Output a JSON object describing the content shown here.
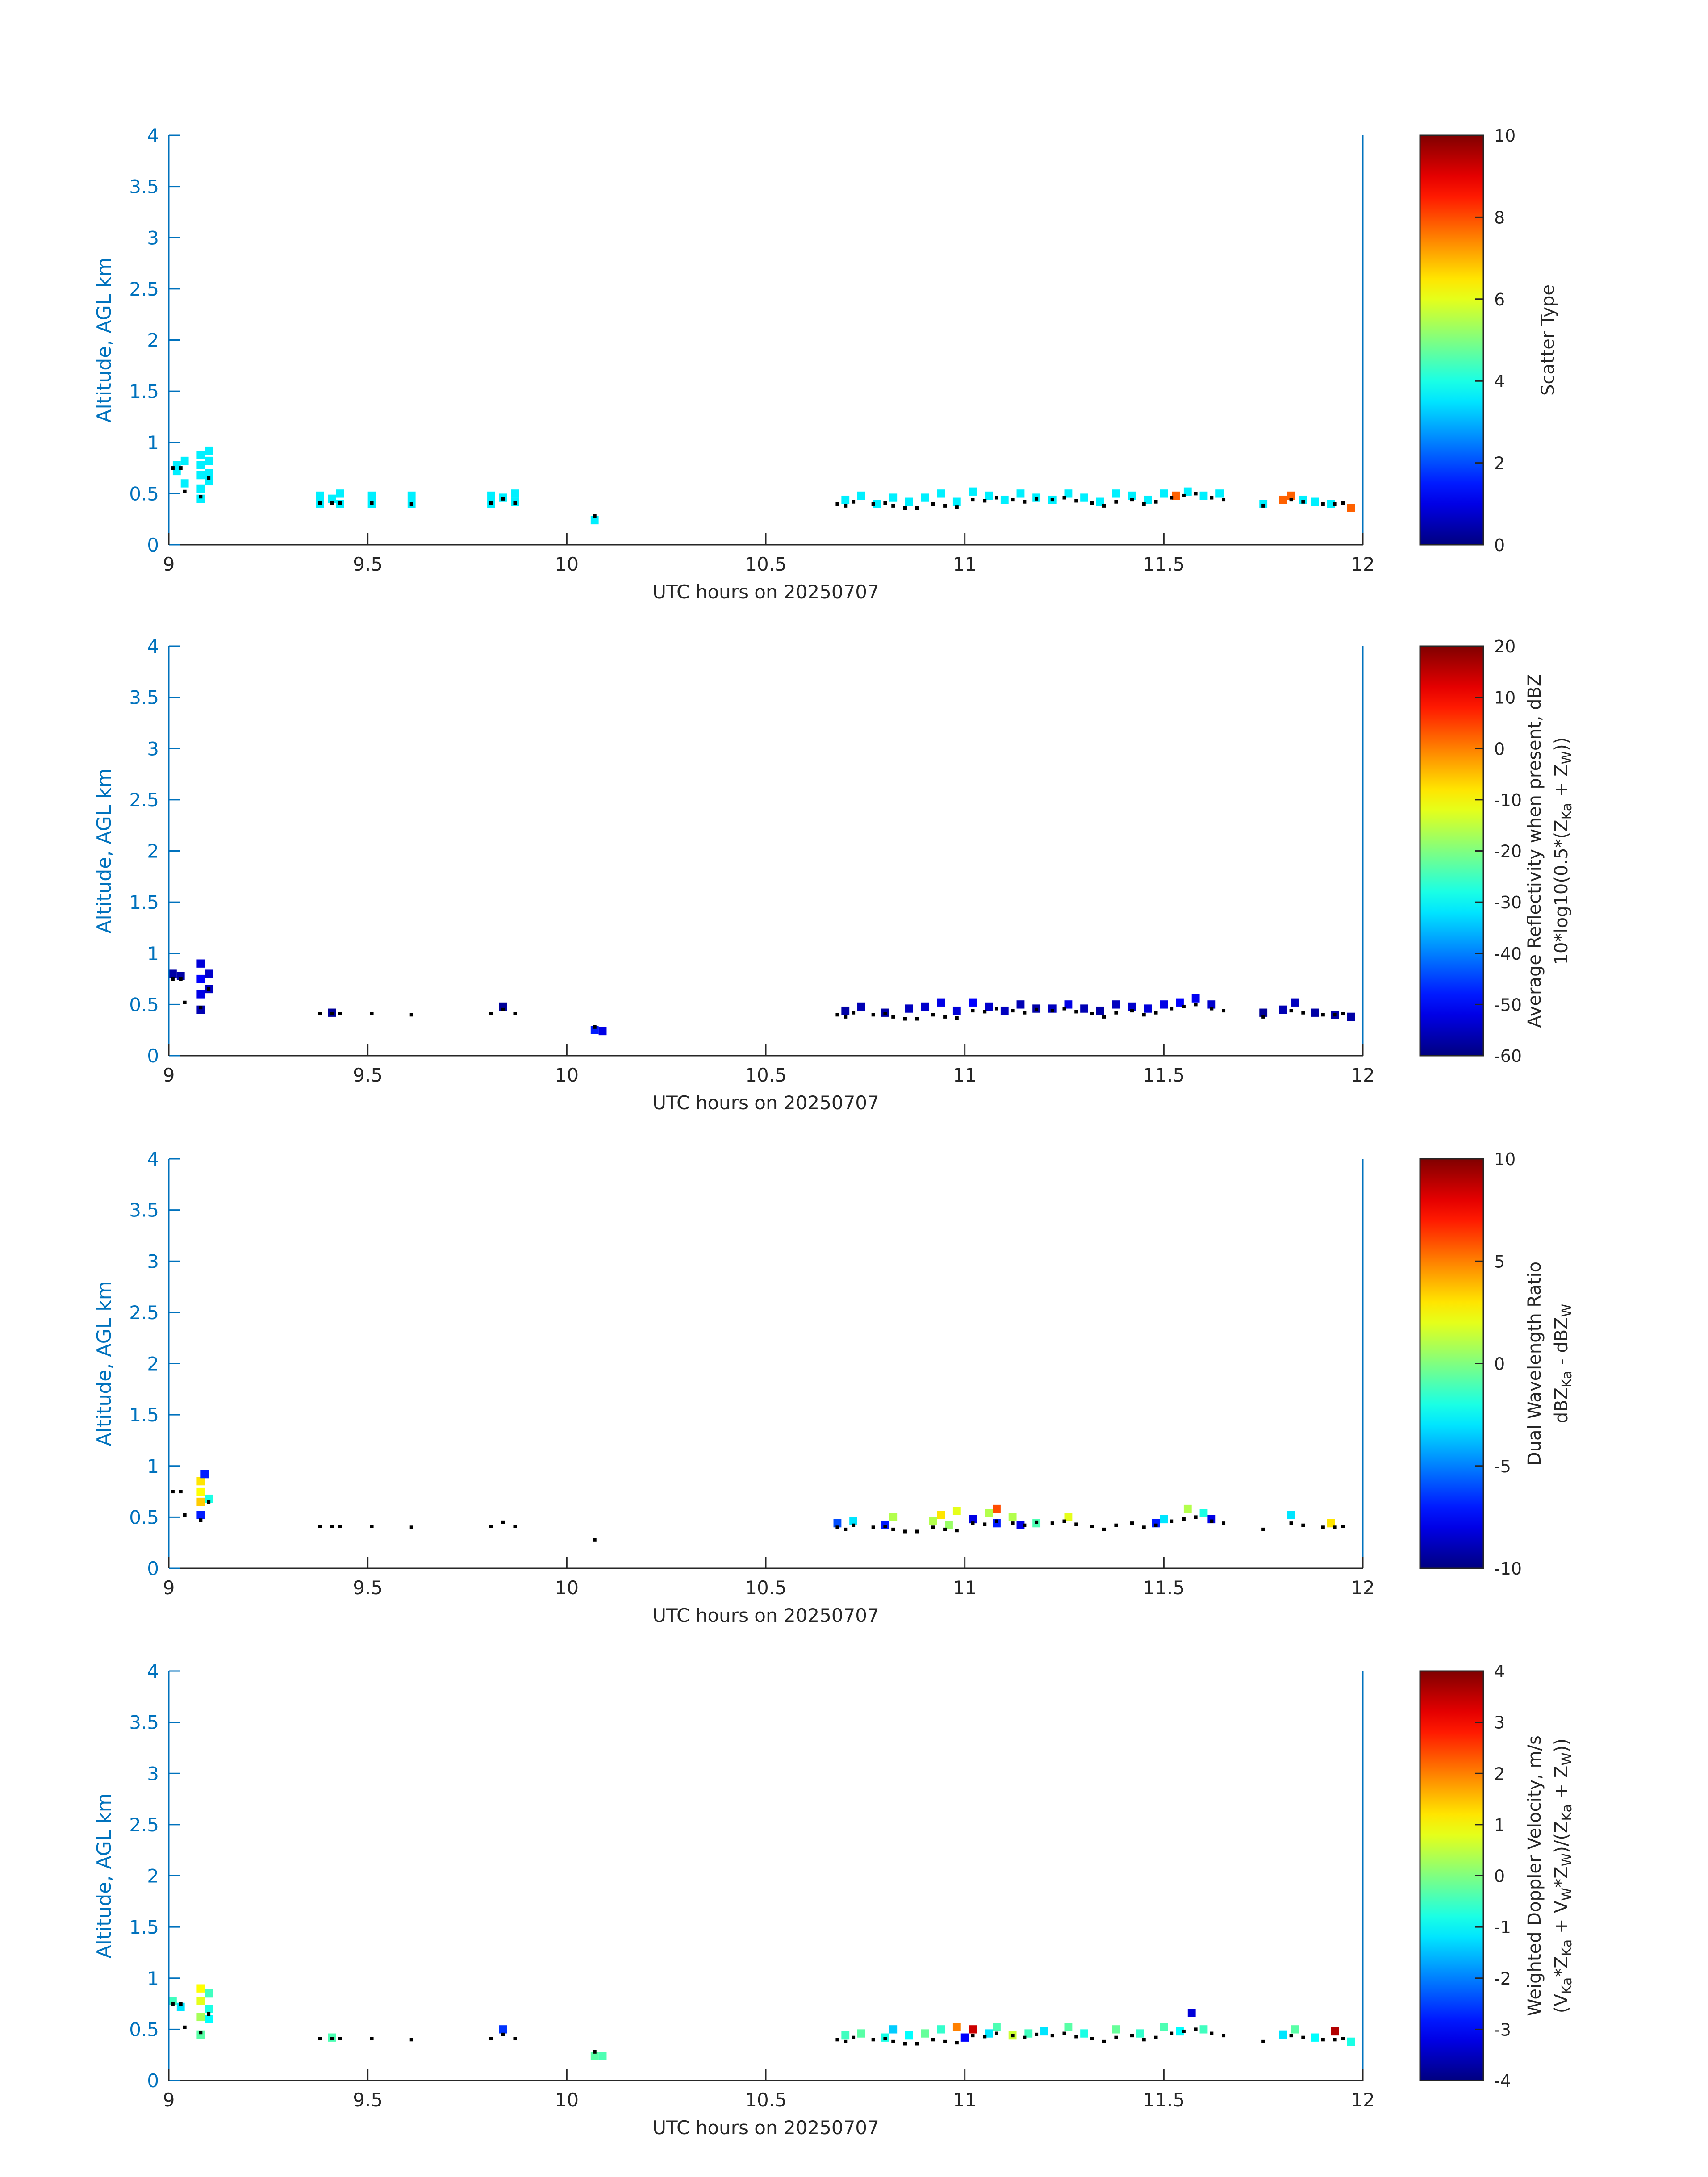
{
  "chart_data": [
    {
      "type": "heatmap",
      "xlabel": "UTC hours on 20250707",
      "ylabel": "Altitude, AGL km",
      "xlim": [
        9,
        12
      ],
      "ylim": [
        0,
        4
      ],
      "xticks": [
        "9",
        "9.5",
        "10",
        "10.5",
        "11",
        "11.5",
        "12"
      ],
      "yticks": [
        "0",
        "0.5",
        "1",
        "1.5",
        "2",
        "2.5",
        "3",
        "3.5",
        "4"
      ],
      "colorbar": {
        "label_lines": [
          "Scatter Type"
        ],
        "range": [
          0,
          10
        ],
        "ticks": [
          "0",
          "2",
          "4",
          "6",
          "8",
          "10"
        ],
        "colormap": "jet"
      },
      "cells": [
        [
          9.02,
          0.78,
          3.6
        ],
        [
          9.02,
          0.72,
          3.6
        ],
        [
          9.04,
          0.82,
          3.6
        ],
        [
          9.04,
          0.6,
          3.6
        ],
        [
          9.08,
          0.88,
          3.6
        ],
        [
          9.08,
          0.78,
          3.6
        ],
        [
          9.08,
          0.68,
          3.6
        ],
        [
          9.08,
          0.55,
          3.6
        ],
        [
          9.08,
          0.45,
          3.6
        ],
        [
          9.1,
          0.92,
          3.6
        ],
        [
          9.1,
          0.82,
          3.6
        ],
        [
          9.1,
          0.7,
          3.6
        ],
        [
          9.1,
          0.62,
          3.6
        ],
        [
          9.38,
          0.48,
          3.6
        ],
        [
          9.38,
          0.4,
          3.6
        ],
        [
          9.41,
          0.45,
          3.6
        ],
        [
          9.43,
          0.5,
          3.6
        ],
        [
          9.43,
          0.4,
          3.6
        ],
        [
          9.51,
          0.48,
          3.6
        ],
        [
          9.51,
          0.4,
          3.6
        ],
        [
          9.61,
          0.48,
          3.6
        ],
        [
          9.61,
          0.4,
          3.6
        ],
        [
          9.81,
          0.48,
          3.6
        ],
        [
          9.81,
          0.4,
          3.6
        ],
        [
          9.84,
          0.46,
          3.6
        ],
        [
          9.87,
          0.5,
          3.6
        ],
        [
          9.87,
          0.42,
          3.6
        ],
        [
          10.07,
          0.24,
          3.6
        ],
        [
          10.7,
          0.44,
          3.6
        ],
        [
          10.74,
          0.48,
          3.6
        ],
        [
          10.78,
          0.4,
          3.6
        ],
        [
          10.82,
          0.46,
          3.6
        ],
        [
          10.86,
          0.42,
          3.6
        ],
        [
          10.9,
          0.46,
          3.6
        ],
        [
          10.94,
          0.5,
          3.6
        ],
        [
          10.98,
          0.42,
          3.6
        ],
        [
          11.02,
          0.52,
          3.6
        ],
        [
          11.06,
          0.48,
          3.6
        ],
        [
          11.1,
          0.44,
          3.6
        ],
        [
          11.14,
          0.5,
          3.6
        ],
        [
          11.18,
          0.46,
          3.6
        ],
        [
          11.22,
          0.44,
          3.6
        ],
        [
          11.26,
          0.5,
          3.6
        ],
        [
          11.3,
          0.46,
          3.6
        ],
        [
          11.34,
          0.42,
          3.6
        ],
        [
          11.38,
          0.5,
          3.6
        ],
        [
          11.42,
          0.48,
          3.6
        ],
        [
          11.46,
          0.44,
          3.6
        ],
        [
          11.5,
          0.5,
          3.6
        ],
        [
          11.53,
          0.48,
          7.8
        ],
        [
          11.56,
          0.52,
          3.6
        ],
        [
          11.6,
          0.48,
          3.6
        ],
        [
          11.64,
          0.5,
          3.6
        ],
        [
          11.75,
          0.4,
          3.6
        ],
        [
          11.8,
          0.44,
          7.8
        ],
        [
          11.82,
          0.48,
          7.8
        ],
        [
          11.85,
          0.44,
          3.6
        ],
        [
          11.88,
          0.42,
          3.6
        ],
        [
          11.92,
          0.4,
          3.6
        ],
        [
          11.97,
          0.36,
          7.8
        ]
      ]
    },
    {
      "type": "heatmap",
      "xlabel": "UTC hours on 20250707",
      "ylabel": "Altitude, AGL km",
      "xlim": [
        9,
        12
      ],
      "ylim": [
        0,
        4
      ],
      "xticks": [
        "9",
        "9.5",
        "10",
        "10.5",
        "11",
        "11.5",
        "12"
      ],
      "yticks": [
        "0",
        "0.5",
        "1",
        "1.5",
        "2",
        "2.5",
        "3",
        "3.5",
        "4"
      ],
      "colorbar": {
        "label_lines": [
          "Average Reflectivity when present, dBZ",
          "10*log10(0.5*(Z",
          "Ka",
          " + Z",
          "W",
          "))"
        ],
        "range": [
          -60,
          20
        ],
        "ticks": [
          "-60",
          "-50",
          "-40",
          "-30",
          "-20",
          "-10",
          "0",
          "10",
          "20"
        ],
        "colormap": "jet"
      },
      "cells": [
        [
          9.01,
          0.8,
          -57
        ],
        [
          9.03,
          0.78,
          -57
        ],
        [
          9.08,
          0.9,
          -53
        ],
        [
          9.08,
          0.75,
          -50
        ],
        [
          9.08,
          0.6,
          -52
        ],
        [
          9.08,
          0.45,
          -56
        ],
        [
          9.1,
          0.8,
          -54
        ],
        [
          9.1,
          0.65,
          -55
        ],
        [
          9.41,
          0.42,
          -58
        ],
        [
          9.84,
          0.48,
          -58
        ],
        [
          10.07,
          0.25,
          -48
        ],
        [
          10.09,
          0.24,
          -52
        ],
        [
          10.7,
          0.44,
          -57
        ],
        [
          10.74,
          0.48,
          -56
        ],
        [
          10.8,
          0.42,
          -57
        ],
        [
          10.86,
          0.46,
          -55
        ],
        [
          10.9,
          0.48,
          -54
        ],
        [
          10.94,
          0.52,
          -52
        ],
        [
          10.98,
          0.44,
          -53
        ],
        [
          11.02,
          0.52,
          -50
        ],
        [
          11.06,
          0.48,
          -54
        ],
        [
          11.1,
          0.44,
          -55
        ],
        [
          11.14,
          0.5,
          -56
        ],
        [
          11.18,
          0.46,
          -57
        ],
        [
          11.22,
          0.46,
          -55
        ],
        [
          11.26,
          0.5,
          -52
        ],
        [
          11.3,
          0.46,
          -56
        ],
        [
          11.34,
          0.44,
          -57
        ],
        [
          11.38,
          0.5,
          -55
        ],
        [
          11.42,
          0.48,
          -54
        ],
        [
          11.46,
          0.46,
          -53
        ],
        [
          11.5,
          0.5,
          -52
        ],
        [
          11.54,
          0.52,
          -50
        ],
        [
          11.58,
          0.56,
          -51
        ],
        [
          11.62,
          0.5,
          -54
        ],
        [
          11.75,
          0.42,
          -58
        ],
        [
          11.8,
          0.45,
          -56
        ],
        [
          11.83,
          0.52,
          -55
        ],
        [
          11.88,
          0.42,
          -57
        ],
        [
          11.93,
          0.4,
          -57
        ],
        [
          11.97,
          0.38,
          -57
        ]
      ]
    },
    {
      "type": "heatmap",
      "xlabel": "UTC hours on 20250707",
      "ylabel": "Altitude, AGL km",
      "xlim": [
        9,
        12
      ],
      "ylim": [
        0,
        4
      ],
      "xticks": [
        "9",
        "9.5",
        "10",
        "10.5",
        "11",
        "11.5",
        "12"
      ],
      "yticks": [
        "0",
        "0.5",
        "1",
        "1.5",
        "2",
        "2.5",
        "3",
        "3.5",
        "4"
      ],
      "colorbar": {
        "label_lines": [
          "Dual Wavelength Ratio",
          "dBZ",
          "Ka",
          " - dBZ",
          "W"
        ],
        "range": [
          -10,
          10
        ],
        "ticks": [
          "-10",
          "-5",
          "0",
          "5",
          "10"
        ],
        "colormap": "jet"
      },
      "cells": [
        [
          9.08,
          0.85,
          3.0
        ],
        [
          9.08,
          0.75,
          2.5
        ],
        [
          9.08,
          0.65,
          3.5
        ],
        [
          9.08,
          0.52,
          -7
        ],
        [
          9.09,
          0.92,
          -7
        ],
        [
          9.1,
          0.68,
          -2
        ],
        [
          10.68,
          0.44,
          -6
        ],
        [
          10.72,
          0.46,
          -3
        ],
        [
          10.8,
          0.42,
          -7
        ],
        [
          10.82,
          0.5,
          1
        ],
        [
          10.92,
          0.46,
          1
        ],
        [
          10.94,
          0.52,
          3
        ],
        [
          10.96,
          0.42,
          0.5
        ],
        [
          10.98,
          0.56,
          2
        ],
        [
          11.02,
          0.48,
          -8
        ],
        [
          11.06,
          0.54,
          1
        ],
        [
          11.08,
          0.58,
          6
        ],
        [
          11.08,
          0.44,
          -7
        ],
        [
          11.12,
          0.5,
          1
        ],
        [
          11.14,
          0.42,
          -8
        ],
        [
          11.18,
          0.44,
          -1
        ],
        [
          11.26,
          0.5,
          2
        ],
        [
          11.48,
          0.44,
          -7
        ],
        [
          11.5,
          0.48,
          -3
        ],
        [
          11.56,
          0.58,
          1
        ],
        [
          11.6,
          0.54,
          -2
        ],
        [
          11.62,
          0.48,
          -8
        ],
        [
          11.82,
          0.52,
          -3
        ],
        [
          11.92,
          0.44,
          3
        ]
      ]
    },
    {
      "type": "heatmap",
      "xlabel": "UTC hours on 20250707",
      "ylabel": "Altitude, AGL km",
      "xlim": [
        9,
        12
      ],
      "ylim": [
        0,
        4
      ],
      "xticks": [
        "9",
        "9.5",
        "10",
        "10.5",
        "11",
        "11.5",
        "12"
      ],
      "yticks": [
        "0",
        "0.5",
        "1",
        "1.5",
        "2",
        "2.5",
        "3",
        "3.5",
        "4"
      ],
      "colorbar": {
        "label_lines": [
          "Weighted Doppler Velocity, m/s",
          "(V",
          "Ka",
          "*Z",
          "Ka",
          " + V",
          "W",
          "*Z",
          "W",
          ")/(Z",
          "Ka",
          " + Z",
          "W",
          "))"
        ],
        "range": [
          -4,
          4
        ],
        "ticks": [
          "-4",
          "-3",
          "-2",
          "-1",
          "0",
          "1",
          "2",
          "3",
          "4"
        ],
        "colormap": "jet"
      },
      "cells": [
        [
          9.01,
          0.78,
          -0.5
        ],
        [
          9.03,
          0.72,
          -1.2
        ],
        [
          9.08,
          0.9,
          1.0
        ],
        [
          9.08,
          0.78,
          0.8
        ],
        [
          9.08,
          0.62,
          0.3
        ],
        [
          9.08,
          0.45,
          -0.3
        ],
        [
          9.1,
          0.85,
          -0.5
        ],
        [
          9.1,
          0.7,
          -0.8
        ],
        [
          9.1,
          0.6,
          -1.0
        ],
        [
          9.41,
          0.42,
          -0.4
        ],
        [
          9.84,
          0.5,
          -2.6
        ],
        [
          10.07,
          0.24,
          -0.3
        ],
        [
          10.09,
          0.24,
          -0.4
        ],
        [
          10.7,
          0.44,
          -0.5
        ],
        [
          10.74,
          0.46,
          -0.3
        ],
        [
          10.8,
          0.42,
          -0.8
        ],
        [
          10.82,
          0.5,
          -1.4
        ],
        [
          10.86,
          0.44,
          -1.0
        ],
        [
          10.9,
          0.46,
          -0.2
        ],
        [
          10.94,
          0.5,
          -0.6
        ],
        [
          10.98,
          0.52,
          2.0
        ],
        [
          11.0,
          0.42,
          -3.0
        ],
        [
          11.02,
          0.5,
          3.4
        ],
        [
          11.06,
          0.46,
          -1.2
        ],
        [
          11.08,
          0.52,
          -0.4
        ],
        [
          11.12,
          0.44,
          0.6
        ],
        [
          11.16,
          0.46,
          -0.5
        ],
        [
          11.2,
          0.48,
          -1.2
        ],
        [
          11.26,
          0.52,
          -0.3
        ],
        [
          11.3,
          0.46,
          -0.8
        ],
        [
          11.38,
          0.5,
          -0.2
        ],
        [
          11.44,
          0.46,
          -0.6
        ],
        [
          11.5,
          0.52,
          -0.4
        ],
        [
          11.54,
          0.48,
          -1.0
        ],
        [
          11.57,
          0.66,
          -3.3
        ],
        [
          11.6,
          0.5,
          -0.5
        ],
        [
          11.8,
          0.45,
          -1.2
        ],
        [
          11.83,
          0.5,
          -0.3
        ],
        [
          11.88,
          0.42,
          -1.0
        ],
        [
          11.93,
          0.48,
          3.6
        ],
        [
          11.97,
          0.38,
          -0.8
        ]
      ]
    }
  ],
  "cloud_base_points": [
    [
      9.01,
      0.75
    ],
    [
      9.03,
      0.75
    ],
    [
      9.04,
      0.52
    ],
    [
      9.08,
      0.47
    ],
    [
      9.1,
      0.65
    ],
    [
      9.38,
      0.41
    ],
    [
      9.41,
      0.41
    ],
    [
      9.43,
      0.41
    ],
    [
      9.51,
      0.41
    ],
    [
      9.61,
      0.4
    ],
    [
      9.81,
      0.41
    ],
    [
      9.84,
      0.45
    ],
    [
      9.87,
      0.41
    ],
    [
      10.07,
      0.28
    ],
    [
      10.68,
      0.4
    ],
    [
      10.7,
      0.38
    ],
    [
      10.72,
      0.42
    ],
    [
      10.77,
      0.4
    ],
    [
      10.8,
      0.41
    ],
    [
      10.82,
      0.38
    ],
    [
      10.85,
      0.36
    ],
    [
      10.88,
      0.36
    ],
    [
      10.92,
      0.4
    ],
    [
      10.95,
      0.38
    ],
    [
      10.98,
      0.37
    ],
    [
      11.02,
      0.44
    ],
    [
      11.05,
      0.43
    ],
    [
      11.08,
      0.46
    ],
    [
      11.12,
      0.44
    ],
    [
      11.15,
      0.42
    ],
    [
      11.18,
      0.45
    ],
    [
      11.22,
      0.44
    ],
    [
      11.25,
      0.46
    ],
    [
      11.28,
      0.43
    ],
    [
      11.32,
      0.41
    ],
    [
      11.35,
      0.38
    ],
    [
      11.38,
      0.42
    ],
    [
      11.42,
      0.44
    ],
    [
      11.45,
      0.4
    ],
    [
      11.48,
      0.42
    ],
    [
      11.52,
      0.46
    ],
    [
      11.55,
      0.48
    ],
    [
      11.58,
      0.5
    ],
    [
      11.62,
      0.46
    ],
    [
      11.65,
      0.44
    ],
    [
      11.75,
      0.38
    ],
    [
      11.82,
      0.44
    ],
    [
      11.85,
      0.42
    ],
    [
      11.9,
      0.4
    ],
    [
      11.93,
      0.4
    ],
    [
      11.95,
      0.41
    ]
  ]
}
